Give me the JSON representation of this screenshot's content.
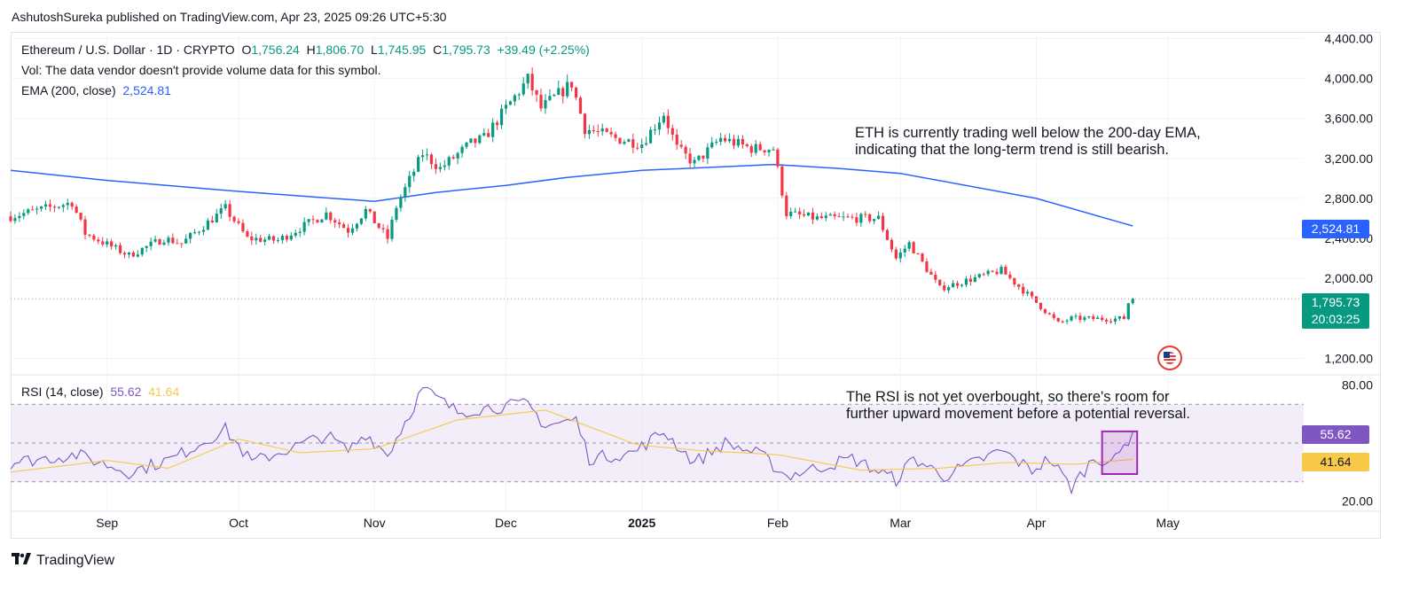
{
  "header": {
    "publish_line": "AshutoshSureka published on TradingView.com, Apr 23, 2025 09:26 UTC+5:30"
  },
  "legend": {
    "symbol": "Ethereum / U.S. Dollar · 1D · CRYPTO",
    "o_label": "O",
    "o_value": "1,756.24",
    "h_label": "H",
    "h_value": "1,806.70",
    "l_label": "L",
    "l_value": "1,745.95",
    "c_label": "C",
    "c_value": "1,795.73",
    "change": "+39.49 (+2.25%)",
    "vol_note": "Vol: The data vendor doesn't provide volume data for this symbol.",
    "ema_label": "EMA (200, close)",
    "ema_value": "2,524.81",
    "rsi_label": "RSI (14, close)",
    "rsi_value": "55.62",
    "rsi_ma_value": "41.64"
  },
  "annotations": {
    "ema_note_line1": "ETH is currently trading well below the 200-day EMA,",
    "ema_note_line2": "indicating that the long-term trend is still bearish.",
    "rsi_note_line1": "The RSI is not yet overbought, so there's room for",
    "rsi_note_line2": "further upward movement before a potential reversal."
  },
  "badges": {
    "ema": "2,524.81",
    "price": "1,795.73",
    "countdown": "20:03:25",
    "rsi": "55.62",
    "rsi_ma": "41.64"
  },
  "colors": {
    "up": "#089981",
    "down": "#f23645",
    "ema": "#2962ff",
    "rsi": "#7e57c2",
    "rsi_ma": "#f7c948",
    "band": "#ede7f6",
    "box": "#9c27b0"
  },
  "footer": {
    "brand": "TradingView"
  },
  "icons": [
    "tradingview-logo-icon",
    "us-flag-icon"
  ],
  "chart_data": [
    {
      "type": "candlestick",
      "title": "Ethereum / U.S. Dollar · 1D · CRYPTO",
      "y_ticks": [
        "1,200.00",
        "2,000.00",
        "2,400.00",
        "2,800.00",
        "3,200.00",
        "3,600.00",
        "4,000.00",
        "4,400.00"
      ],
      "y_tick_values": [
        1200,
        2000,
        2400,
        2800,
        3200,
        3600,
        4000,
        4400
      ],
      "ylim": [
        1080,
        4430
      ],
      "x_ticks": [
        "Sep",
        "Oct",
        "Nov",
        "Dec",
        "2025",
        "Feb",
        "Mar",
        "Apr",
        "May"
      ],
      "x_tick_dates": [
        "2024-09-01",
        "2024-10-01",
        "2024-11-01",
        "2024-12-01",
        "2025-01-01",
        "2025-02-01",
        "2025-03-01",
        "2025-04-01",
        "2025-05-01"
      ],
      "xlim": [
        "2024-08-10",
        "2025-06-01"
      ],
      "close_anchors": [
        [
          "2024-08-10",
          2620
        ],
        [
          "2024-08-24",
          2760
        ],
        [
          "2024-08-27",
          2450
        ],
        [
          "2024-09-06",
          2230
        ],
        [
          "2024-09-14",
          2400
        ],
        [
          "2024-09-18",
          2350
        ],
        [
          "2024-09-28",
          2700
        ],
        [
          "2024-10-03",
          2400
        ],
        [
          "2024-10-10",
          2380
        ],
        [
          "2024-10-21",
          2650
        ],
        [
          "2024-10-26",
          2480
        ],
        [
          "2024-10-30",
          2680
        ],
        [
          "2024-11-04",
          2400
        ],
        [
          "2024-11-06",
          2720
        ],
        [
          "2024-11-12",
          3250
        ],
        [
          "2024-11-16",
          3100
        ],
        [
          "2024-11-23",
          3350
        ],
        [
          "2024-11-26",
          3400
        ],
        [
          "2024-12-01",
          3700
        ],
        [
          "2024-12-06",
          3990
        ],
        [
          "2024-12-09",
          3700
        ],
        [
          "2024-12-16",
          3950
        ],
        [
          "2024-12-19",
          3500
        ],
        [
          "2024-12-26",
          3400
        ],
        [
          "2025-01-01",
          3350
        ],
        [
          "2025-01-06",
          3650
        ],
        [
          "2025-01-09",
          3300
        ],
        [
          "2025-01-13",
          3150
        ],
        [
          "2025-01-19",
          3400
        ],
        [
          "2025-01-26",
          3300
        ],
        [
          "2025-01-31",
          3300
        ],
        [
          "2025-02-03",
          2650
        ],
        [
          "2025-02-10",
          2600
        ],
        [
          "2025-02-24",
          2600
        ],
        [
          "2025-02-28",
          2200
        ],
        [
          "2025-03-03",
          2350
        ],
        [
          "2025-03-10",
          1900
        ],
        [
          "2025-03-24",
          2080
        ],
        [
          "2025-03-31",
          1800
        ],
        [
          "2025-04-06",
          1550
        ],
        [
          "2025-04-09",
          1600
        ],
        [
          "2025-04-19",
          1595
        ],
        [
          "2025-04-21",
          1600
        ],
        [
          "2025-04-22",
          1757
        ],
        [
          "2025-04-23",
          1796
        ]
      ],
      "ema_200": [
        [
          "2024-08-10",
          3080
        ],
        [
          "2024-09-01",
          2980
        ],
        [
          "2024-10-01",
          2870
        ],
        [
          "2024-11-01",
          2770
        ],
        [
          "2024-11-15",
          2860
        ],
        [
          "2024-12-01",
          2930
        ],
        [
          "2024-12-15",
          3010
        ],
        [
          "2025-01-01",
          3080
        ],
        [
          "2025-01-31",
          3140
        ],
        [
          "2025-02-15",
          3100
        ],
        [
          "2025-03-01",
          3050
        ],
        [
          "2025-04-01",
          2800
        ],
        [
          "2025-04-23",
          2524.81
        ]
      ],
      "last_close": 1795.73
    },
    {
      "type": "line",
      "title": "RSI (14, close)",
      "y_ticks": [
        "20.00",
        "80.00"
      ],
      "y_tick_values": [
        20,
        80
      ],
      "ylim": [
        18,
        82
      ],
      "bands": [
        30,
        50,
        70
      ],
      "rsi_anchors": [
        [
          "2024-08-10",
          40
        ],
        [
          "2024-08-25",
          44
        ],
        [
          "2024-09-06",
          35
        ],
        [
          "2024-09-16",
          42
        ],
        [
          "2024-09-28",
          57
        ],
        [
          "2024-10-04",
          40
        ],
        [
          "2024-10-21",
          54
        ],
        [
          "2024-10-26",
          46
        ],
        [
          "2024-10-30",
          55
        ],
        [
          "2024-11-04",
          44
        ],
        [
          "2024-11-12",
          78
        ],
        [
          "2024-11-20",
          66
        ],
        [
          "2024-11-26",
          68
        ],
        [
          "2024-12-06",
          70
        ],
        [
          "2024-12-10",
          59
        ],
        [
          "2024-12-17",
          62
        ],
        [
          "2024-12-20",
          42
        ],
        [
          "2024-12-30",
          45
        ],
        [
          "2025-01-06",
          56
        ],
        [
          "2025-01-13",
          40
        ],
        [
          "2025-01-20",
          50
        ],
        [
          "2025-01-28",
          44
        ],
        [
          "2025-02-03",
          33
        ],
        [
          "2025-02-18",
          42
        ],
        [
          "2025-02-28",
          31
        ],
        [
          "2025-03-04",
          42
        ],
        [
          "2025-03-11",
          33
        ],
        [
          "2025-03-24",
          46
        ],
        [
          "2025-03-31",
          36
        ],
        [
          "2025-04-04",
          42
        ],
        [
          "2025-04-09",
          27
        ],
        [
          "2025-04-14",
          42
        ],
        [
          "2025-04-19",
          41
        ],
        [
          "2025-04-23",
          55.62
        ]
      ],
      "rsi_ma_anchors": [
        [
          "2024-08-10",
          35
        ],
        [
          "2024-09-01",
          41
        ],
        [
          "2024-09-15",
          37
        ],
        [
          "2024-10-01",
          52
        ],
        [
          "2024-10-15",
          45
        ],
        [
          "2024-11-01",
          47
        ],
        [
          "2024-11-20",
          62
        ],
        [
          "2024-12-10",
          67
        ],
        [
          "2024-12-31",
          49
        ],
        [
          "2025-01-15",
          46
        ],
        [
          "2025-02-01",
          44
        ],
        [
          "2025-02-20",
          36
        ],
        [
          "2025-03-10",
          37
        ],
        [
          "2025-03-25",
          40
        ],
        [
          "2025-04-10",
          39
        ],
        [
          "2025-04-23",
          41.64
        ]
      ],
      "highlight_box": {
        "x_start": "2025-04-16",
        "x_end": "2025-04-24",
        "y_low": 34,
        "y_high": 56
      }
    }
  ]
}
